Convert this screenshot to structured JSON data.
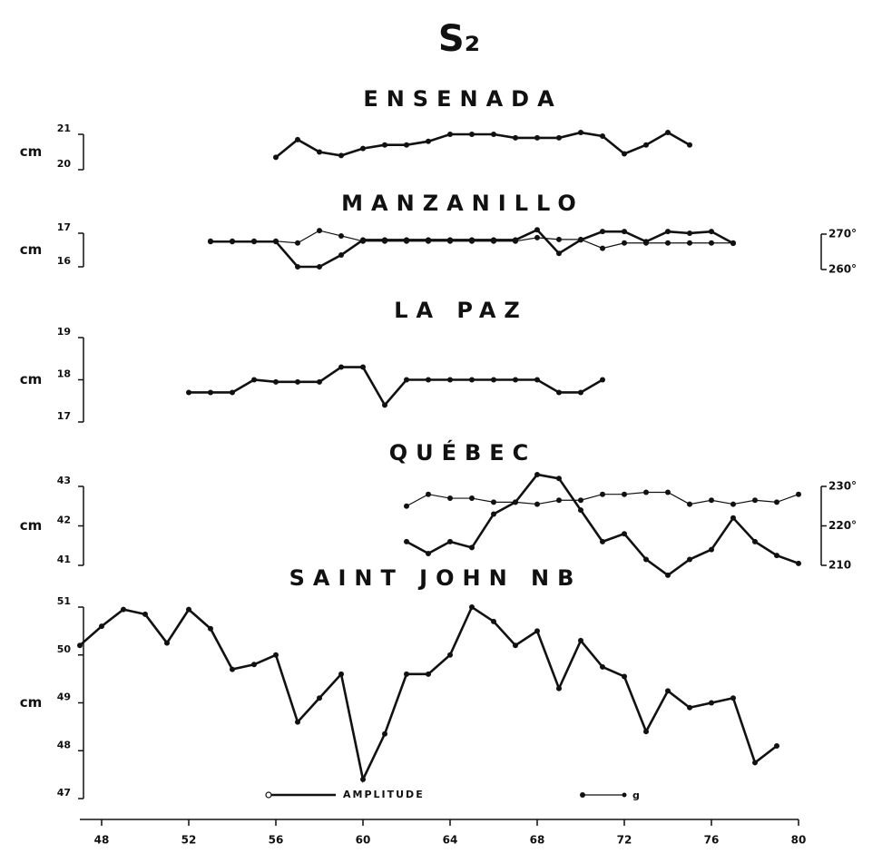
{
  "title": "S₂",
  "chart_data": [
    {
      "type": "line",
      "title": "ENSENADA",
      "ylabel": "cm",
      "ylim": [
        20,
        21
      ],
      "yticks": [
        20,
        21
      ],
      "x": [
        56,
        57,
        58,
        59,
        60,
        61,
        62,
        63,
        64,
        65,
        66,
        67,
        68,
        69,
        70,
        71,
        72,
        73,
        74,
        75
      ],
      "series": [
        {
          "name": "AMPLITUDE",
          "color": "#111111",
          "values": [
            20.35,
            20.85,
            20.5,
            20.4,
            20.6,
            20.7,
            20.7,
            20.8,
            21,
            21,
            21,
            20.9,
            20.9,
            20.9,
            21.05,
            20.95,
            20.45,
            20.7,
            21.05,
            20.7
          ]
        }
      ]
    },
    {
      "type": "line",
      "title": "MANZANILLO",
      "ylabel": "cm",
      "ylim": [
        16,
        17
      ],
      "yticks": [
        16,
        17
      ],
      "y2lim": [
        260,
        270
      ],
      "y2ticks": [
        {
          "value": 260,
          "label": "260°"
        },
        {
          "value": 270,
          "label": "270°"
        }
      ],
      "x": [
        53,
        54,
        55,
        56,
        57,
        58,
        59,
        60,
        61,
        62,
        63,
        64,
        65,
        66,
        67,
        68,
        69,
        70,
        71,
        72,
        73,
        74,
        75,
        76,
        77
      ],
      "series": [
        {
          "name": "AMPLITUDE",
          "color": "#111111",
          "values": [
            16.75,
            16.75,
            16.75,
            16.75,
            16.0,
            16.0,
            16.35,
            16.8,
            16.8,
            16.8,
            16.8,
            16.8,
            16.8,
            16.8,
            16.8,
            17.1,
            16.4,
            16.8,
            17.05,
            17.05,
            16.75,
            17.05,
            17.0,
            17.05,
            16.7
          ]
        },
        {
          "name": "g",
          "color": "#111111",
          "axis": "y2",
          "values": [
            268,
            268,
            268,
            268,
            267.5,
            271,
            269.5,
            268,
            268,
            268,
            268,
            268,
            268,
            268,
            268,
            269,
            268.5,
            268.5,
            266,
            267.5,
            267.5,
            267.5,
            267.5,
            267.5,
            267.5
          ]
        }
      ]
    },
    {
      "type": "line",
      "title": "LA PAZ",
      "ylabel": "cm",
      "ylim": [
        17,
        19
      ],
      "yticks": [
        17,
        18,
        19
      ],
      "x": [
        52,
        53,
        54,
        55,
        56,
        57,
        58,
        59,
        60,
        61,
        62,
        63,
        64,
        65,
        66,
        67,
        68,
        69,
        70,
        71
      ],
      "series": [
        {
          "name": "AMPLITUDE",
          "color": "#111111",
          "values": [
            17.7,
            17.7,
            17.7,
            18,
            17.95,
            17.95,
            17.95,
            18.3,
            18.3,
            17.4,
            18,
            18,
            18,
            18,
            18,
            18,
            18,
            17.7,
            17.7,
            18
          ]
        }
      ]
    },
    {
      "type": "line",
      "title": "QUÉBEC",
      "ylabel": "cm",
      "ylim": [
        41,
        43
      ],
      "yticks": [
        41,
        42,
        43
      ],
      "y2lim": [
        210,
        230
      ],
      "y2ticks": [
        210,
        {
          "value": 220,
          "label": "220°"
        },
        {
          "value": 230,
          "label": "230°"
        }
      ],
      "x": [
        62,
        63,
        64,
        65,
        66,
        67,
        68,
        69,
        70,
        71,
        72,
        73,
        74,
        75,
        76,
        77,
        78,
        79,
        80
      ],
      "series": [
        {
          "name": "AMPLITUDE",
          "color": "#111111",
          "values": [
            41.6,
            41.3,
            41.6,
            41.45,
            42.3,
            42.6,
            43.3,
            43.2,
            42.4,
            41.6,
            41.8,
            41.15,
            40.75,
            41.15,
            41.4,
            42.2,
            41.6,
            41.25,
            41.05
          ]
        },
        {
          "name": "g",
          "color": "#111111",
          "axis": "y2",
          "values": [
            225,
            228,
            227,
            227,
            226,
            226,
            225.5,
            226.5,
            226.5,
            228,
            228,
            228.5,
            228.5,
            225.5,
            226.5,
            225.5,
            226.5,
            226,
            228
          ]
        }
      ]
    },
    {
      "type": "line",
      "title": "SAINT JOHN NB",
      "ylabel": "cm",
      "ylim": [
        47,
        51
      ],
      "yticks": [
        47,
        48,
        49,
        50,
        51
      ],
      "xlim": [
        47,
        80
      ],
      "xticks": [
        48,
        52,
        56,
        60,
        64,
        68,
        72,
        76,
        80
      ],
      "x": [
        47,
        48,
        49,
        50,
        51,
        52,
        53,
        54,
        55,
        56,
        57,
        58,
        59,
        60,
        61,
        62,
        63,
        64,
        65,
        66,
        67,
        68,
        69,
        70,
        71,
        72,
        73,
        74,
        75,
        76,
        77,
        78,
        79
      ],
      "series": [
        {
          "name": "AMPLITUDE",
          "color": "#111111",
          "values": [
            50.2,
            50.6,
            50.95,
            50.85,
            50.25,
            50.95,
            50.55,
            49.7,
            49.8,
            50.0,
            48.6,
            49.1,
            49.6,
            47.4,
            48.35,
            49.6,
            49.6,
            50.0,
            51.0,
            50.7,
            50.2,
            50.5,
            49.3,
            50.3,
            49.75,
            49.55,
            48.4,
            49.25,
            48.9,
            49.0,
            49.1,
            47.75,
            48.1
          ]
        }
      ]
    }
  ]
}
